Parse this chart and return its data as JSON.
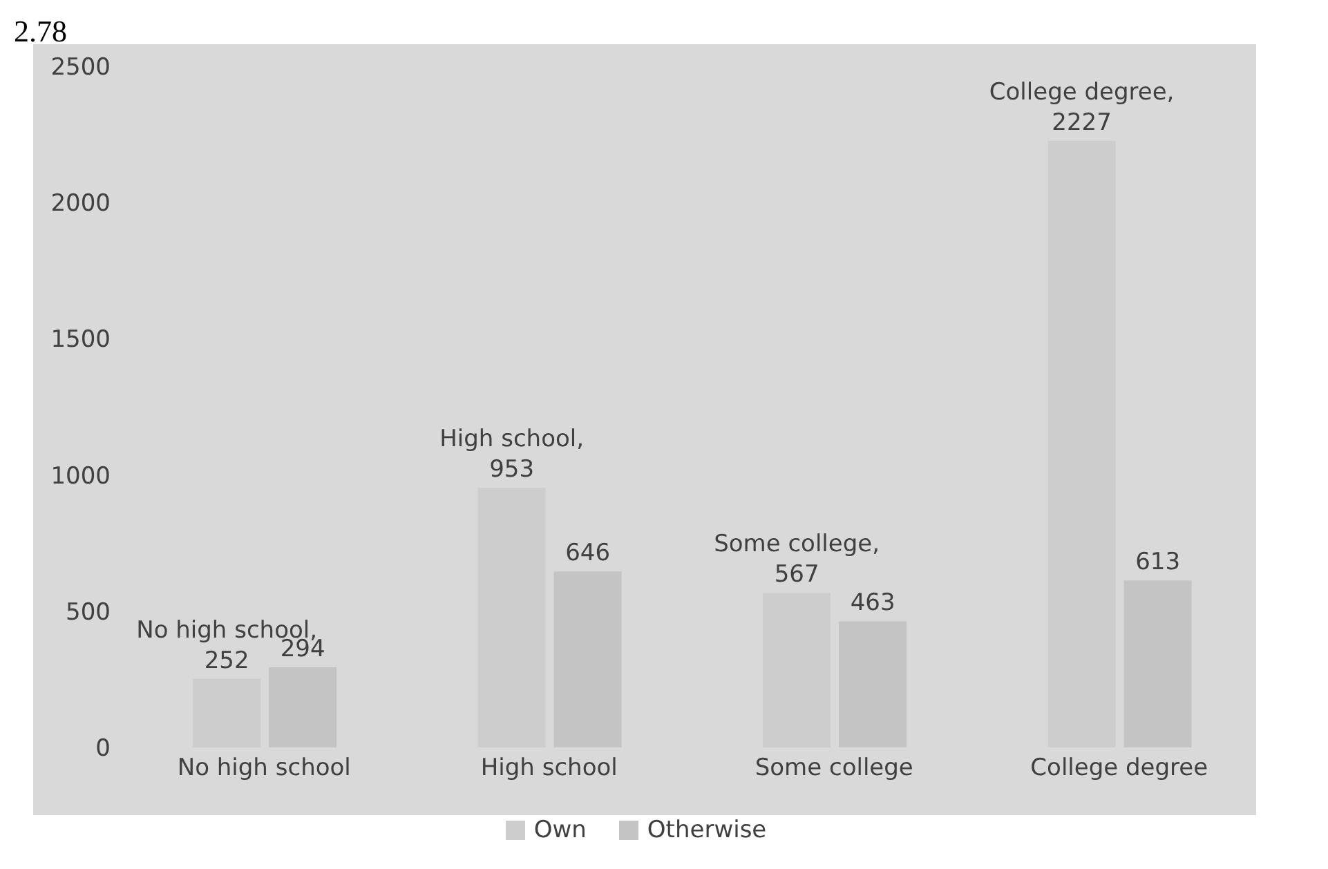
{
  "chart_data": {
    "type": "bar",
    "categories": [
      "No high school",
      "High school",
      "Some college",
      "College degree"
    ],
    "series": [
      {
        "name": "Own",
        "color": "#cdcdcd",
        "values": [
          252,
          953,
          567,
          2227
        ],
        "value_labels": [
          "No high school, 252",
          "High school, 953",
          "Some college, 567",
          "College degree, 2227"
        ]
      },
      {
        "name": "Otherwise",
        "color": "#c4c4c4",
        "values": [
          294,
          646,
          463,
          613
        ],
        "value_labels": [
          "294",
          "646",
          "463",
          "613"
        ]
      }
    ],
    "ylim": [
      0,
      2500
    ],
    "yticks": [
      0,
      500,
      1000,
      1500,
      2000,
      2500
    ],
    "grid": false,
    "legend": "bottom",
    "annotations": [
      "2.78"
    ]
  }
}
